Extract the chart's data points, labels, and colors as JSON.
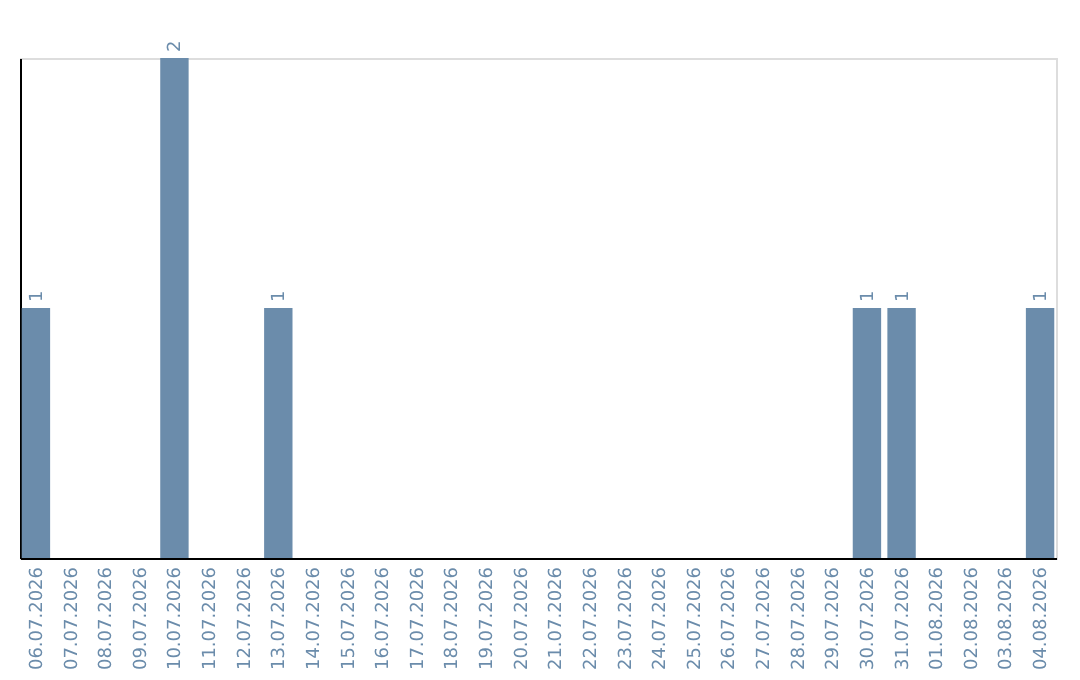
{
  "chart_data": {
    "type": "bar",
    "categories": [
      "06.07.2026",
      "07.07.2026",
      "08.07.2026",
      "09.07.2026",
      "10.07.2026",
      "11.07.2026",
      "12.07.2026",
      "13.07.2026",
      "14.07.2026",
      "15.07.2026",
      "16.07.2026",
      "17.07.2026",
      "18.07.2026",
      "19.07.2026",
      "20.07.2026",
      "21.07.2026",
      "22.07.2026",
      "23.07.2026",
      "24.07.2026",
      "25.07.2026",
      "26.07.2026",
      "27.07.2026",
      "28.07.2026",
      "29.07.2026",
      "30.07.2026",
      "31.07.2026",
      "01.08.2026",
      "02.08.2026",
      "03.08.2026",
      "04.08.2026"
    ],
    "values": [
      1,
      0,
      0,
      0,
      2,
      0,
      0,
      1,
      0,
      0,
      0,
      0,
      0,
      0,
      0,
      0,
      0,
      0,
      0,
      0,
      0,
      0,
      0,
      0,
      1,
      1,
      0,
      0,
      0,
      1
    ],
    "value_labels": [
      "1",
      null,
      null,
      null,
      "2",
      null,
      null,
      "1",
      null,
      null,
      null,
      null,
      null,
      null,
      null,
      null,
      null,
      null,
      null,
      null,
      null,
      null,
      null,
      null,
      "1",
      "1",
      null,
      null,
      null,
      "1"
    ],
    "color": "#6b8cab",
    "ylim": [
      0,
      2
    ],
    "tick_labels": "x",
    "grid": false
  }
}
